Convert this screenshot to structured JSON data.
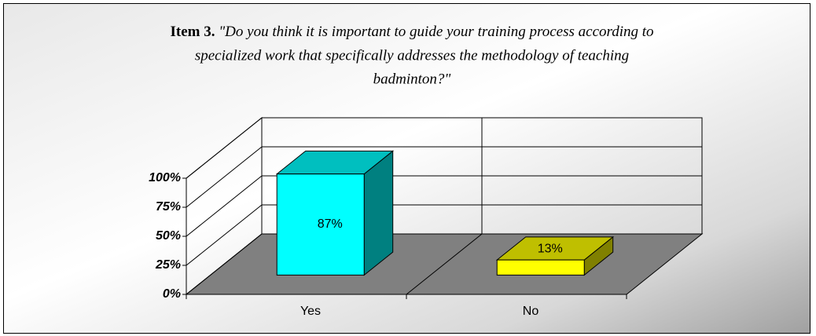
{
  "chart_data": {
    "type": "bar3d",
    "title": [
      "Item 3.",
      "\"Do you think it is important to guide your training process according to",
      "specialized work that specifically addresses the methodology of teaching",
      "badminton?\""
    ],
    "categories": [
      "Yes",
      "No"
    ],
    "values": [
      87,
      13
    ],
    "value_labels": [
      "87%",
      "13%"
    ],
    "colors": [
      "#00ffff",
      "#ffff00"
    ],
    "ylim": [
      0,
      100
    ],
    "yticks": [
      {
        "value": 0,
        "label": "0%"
      },
      {
        "value": 25,
        "label": "25%"
      },
      {
        "value": 50,
        "label": "50%"
      },
      {
        "value": 75,
        "label": "75%"
      },
      {
        "value": 100,
        "label": "100%"
      }
    ],
    "grid": true
  }
}
